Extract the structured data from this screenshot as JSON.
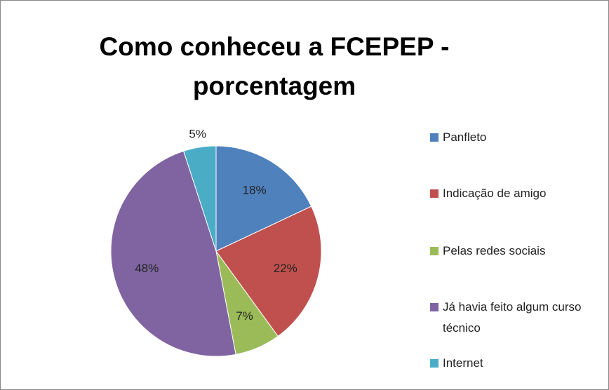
{
  "chart_data": {
    "type": "pie",
    "title": "Como conheceu a FCEPEP - porcentagem",
    "categories": [
      "Panfleto",
      "Indicação de amigo",
      "Pelas redes sociais",
      "Já havia feito algum curso técnico",
      "Internet"
    ],
    "values": [
      18,
      22,
      7,
      48,
      5
    ],
    "value_labels": [
      "18%",
      "22%",
      "7%",
      "48%",
      "5%"
    ],
    "colors": [
      "#4f81bd",
      "#c0504d",
      "#9bbb59",
      "#8064a2",
      "#4bacc6"
    ],
    "legend": "right"
  }
}
